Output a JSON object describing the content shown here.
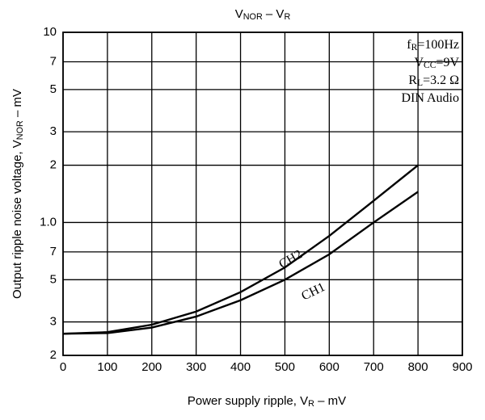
{
  "chart_data": {
    "type": "line",
    "title": [
      {
        "t": "V"
      },
      {
        "t": "NOR",
        "sub": true
      },
      {
        "t": " – V"
      },
      {
        "t": "R",
        "sub": true
      }
    ],
    "y_label": [
      {
        "t": "Output ripple noise voltage, V"
      },
      {
        "t": "NOR",
        "sub": true
      },
      {
        "t": " – mV"
      }
    ],
    "x_label": [
      {
        "t": "Power supply ripple, V"
      },
      {
        "t": "R",
        "sub": true
      },
      {
        "t": " – mV"
      }
    ],
    "annotations": [
      [
        {
          "t": "f"
        },
        {
          "t": "R",
          "sub": true
        },
        {
          "t": "=100Hz"
        }
      ],
      [
        {
          "t": "V"
        },
        {
          "t": "CC",
          "sub": true
        },
        {
          "t": "=9V"
        }
      ],
      [
        {
          "t": "R"
        },
        {
          "t": "L",
          "sub": true
        },
        {
          "t": "=3.2 Ω"
        }
      ],
      [
        {
          "t": "DIN Audio"
        }
      ]
    ],
    "x": [
      0,
      100,
      200,
      300,
      400,
      500,
      600,
      700,
      800
    ],
    "series": [
      {
        "name": "CH1",
        "color": "#000000",
        "values": [
          0.26,
          0.262,
          0.28,
          0.32,
          0.39,
          0.5,
          0.68,
          1.0,
          1.45
        ]
      },
      {
        "name": "CH2",
        "color": "#000000",
        "values": [
          0.26,
          0.265,
          0.29,
          0.34,
          0.43,
          0.58,
          0.85,
          1.3,
          2.0
        ]
      }
    ],
    "xlim": [
      0,
      900
    ],
    "xticks": [
      0,
      100,
      200,
      300,
      400,
      500,
      600,
      700,
      800,
      900
    ],
    "ylim": [
      0.2,
      10
    ],
    "ylog": true,
    "yticks": [
      {
        "value": 0.2,
        "label": "2"
      },
      {
        "value": 0.3,
        "label": "3"
      },
      {
        "value": 0.5,
        "label": "5"
      },
      {
        "value": 0.7,
        "label": "7"
      },
      {
        "value": 1.0,
        "label": "1.0"
      },
      2,
      3,
      5,
      7,
      10
    ],
    "grid": true
  }
}
